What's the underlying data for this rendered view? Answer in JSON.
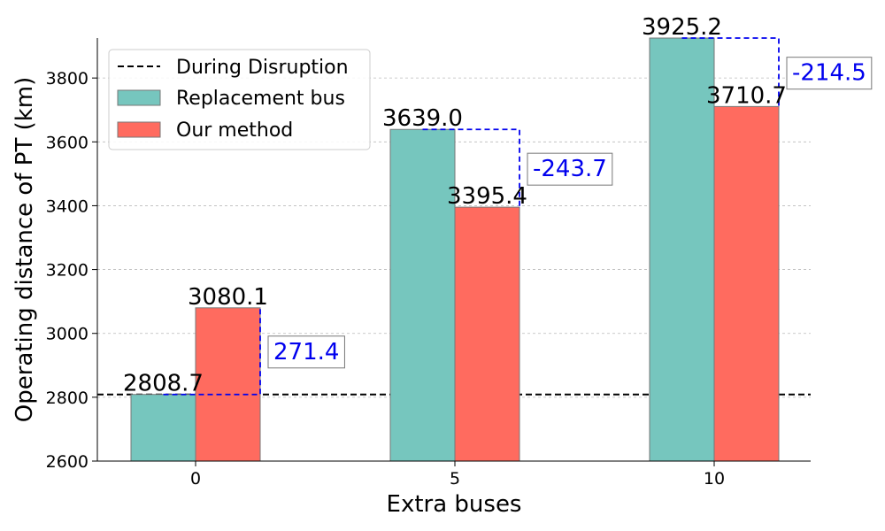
{
  "chart_data": {
    "type": "bar",
    "categories": [
      "0",
      "5",
      "10"
    ],
    "xlabel": "Extra buses",
    "ylabel": "Operating distance of PT (km)",
    "ylim": [
      2600,
      3925.2
    ],
    "yticks": [
      2600,
      2800,
      3000,
      3200,
      3400,
      3600,
      3800
    ],
    "grid": "horizontal dashed",
    "legend_position": "top-left",
    "series": [
      {
        "name": "Replacement bus",
        "values": [
          2808.7,
          3639.0,
          3925.2
        ],
        "labels": [
          "2808.7",
          "3639.0",
          "3925.2"
        ],
        "color": "#76c6be"
      },
      {
        "name": "Our method",
        "values": [
          3080.1,
          3395.4,
          3710.7
        ],
        "labels": [
          "3080.1",
          "3395.4",
          "3710.7"
        ],
        "color": "#ff6b5f"
      }
    ],
    "reference_line": {
      "name": "During Disruption",
      "value": 2808.7,
      "style": "dashed",
      "color": "#000000"
    },
    "differences": {
      "labels": [
        "271.4",
        "-243.7",
        "-214.5"
      ],
      "values": [
        271.4,
        -243.7,
        -214.5
      ],
      "color": "#0000ee"
    }
  }
}
